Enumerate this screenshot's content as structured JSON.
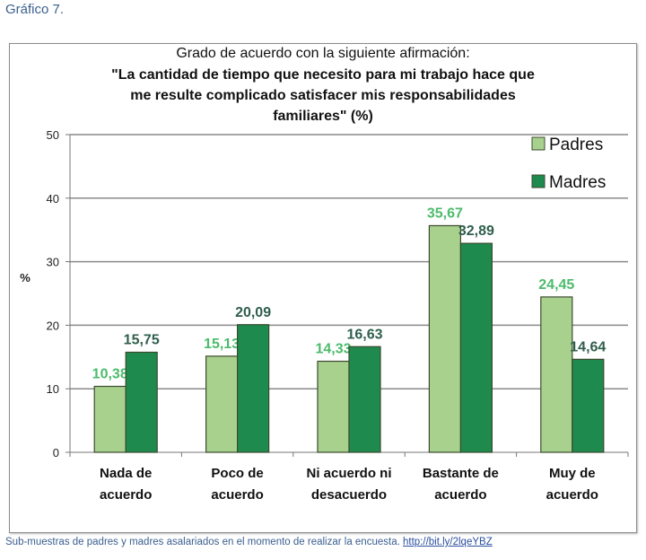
{
  "caption": "Gráfico 7.",
  "source_text": "Sub-muestras de padres y madres asalariados en el momento de realizar la encuesta.",
  "source_link": "http://bit.ly/2lqeYBZ",
  "colors": {
    "padres": "#a9d18e",
    "madres": "#1e8a4e",
    "padres_label": "#4cbb6c",
    "madres_label": "#2f5e4c",
    "outline": "#3b4a2f"
  },
  "chart_data": {
    "type": "bar",
    "title_lines": [
      "Grado de acuerdo con la siguiente afirmación:",
      "\"La cantidad de tiempo que necesito para mi trabajo hace que",
      "me resulte complicado satisfacer mis responsabilidades",
      "familiares\" (%)"
    ],
    "ylabel": "%",
    "xlabel": "",
    "ylim": [
      0,
      50
    ],
    "yticks": [
      0,
      10,
      20,
      30,
      40,
      50
    ],
    "grid": true,
    "legend_position": "top-right",
    "categories": [
      [
        "Nada de",
        "acuerdo"
      ],
      [
        "Poco de",
        "acuerdo"
      ],
      [
        "Ni acuerdo ni",
        "desacuerdo"
      ],
      [
        "Bastante de",
        "acuerdo"
      ],
      [
        "Muy de",
        "acuerdo"
      ]
    ],
    "series": [
      {
        "name": "Padres",
        "values": [
          10.38,
          15.13,
          14.33,
          35.67,
          24.45
        ],
        "labels": [
          "10,38",
          "15,13",
          "14,33",
          "35,67",
          "24,45"
        ]
      },
      {
        "name": "Madres",
        "values": [
          15.75,
          20.09,
          16.63,
          32.89,
          14.64
        ],
        "labels": [
          "15,75",
          "20,09",
          "16,63",
          "32,89",
          "14,64"
        ]
      }
    ]
  }
}
